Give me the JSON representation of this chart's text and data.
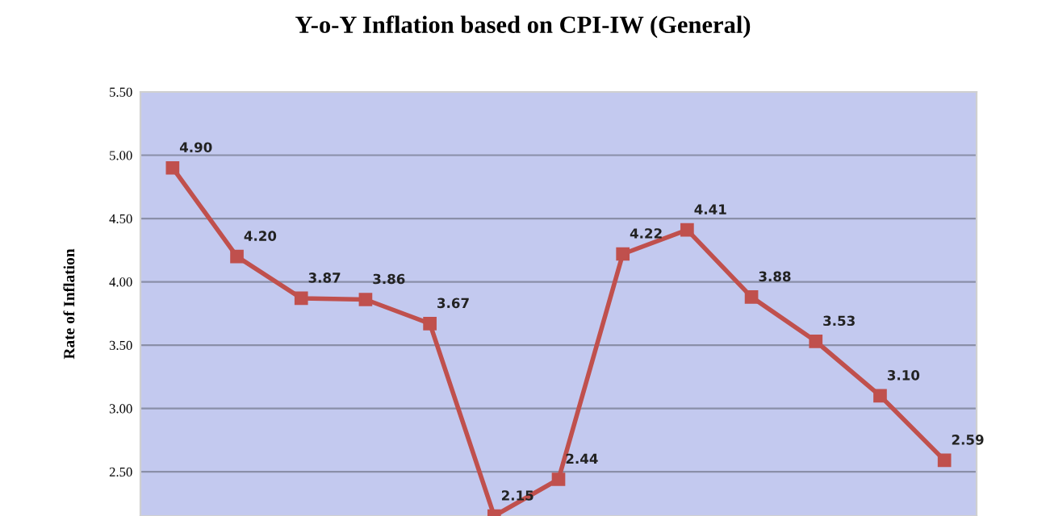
{
  "chart_data": {
    "type": "line",
    "title": "Y-o-Y Inflation based on CPI-IW (General)",
    "ylabel": "Rate of Inflation",
    "categories": [
      null,
      null,
      null,
      null,
      null,
      null,
      null,
      null,
      null,
      null,
      null,
      null,
      null
    ],
    "series": [
      {
        "color": "#c0504d",
        "values": [
          4.9,
          4.2,
          3.87,
          3.86,
          3.67,
          2.15,
          2.44,
          4.22,
          4.41,
          3.88,
          3.53,
          3.1,
          2.59
        ],
        "value_labels": [
          "4.90",
          "4.20",
          "3.87",
          "3.86",
          "3.67",
          "2.15",
          "2.44",
          "4.22",
          "4.41",
          "3.88",
          "3.53",
          "3.10",
          "2.59"
        ]
      }
    ],
    "ylim": [
      2.15,
      5.5
    ],
    "yticks": [
      {
        "value": 2.5,
        "label": "2.50"
      },
      {
        "value": 3.0,
        "label": "3.00"
      },
      {
        "value": 3.5,
        "label": "3.50"
      },
      {
        "value": 4.0,
        "label": "4.00"
      },
      {
        "value": 4.5,
        "label": "4.50"
      },
      {
        "value": 5.0,
        "label": "5.00"
      },
      {
        "value": 5.5,
        "label": "5.50"
      }
    ],
    "grid": "y",
    "marker": "square",
    "line_style": "solid",
    "tick_labels": "y"
  }
}
